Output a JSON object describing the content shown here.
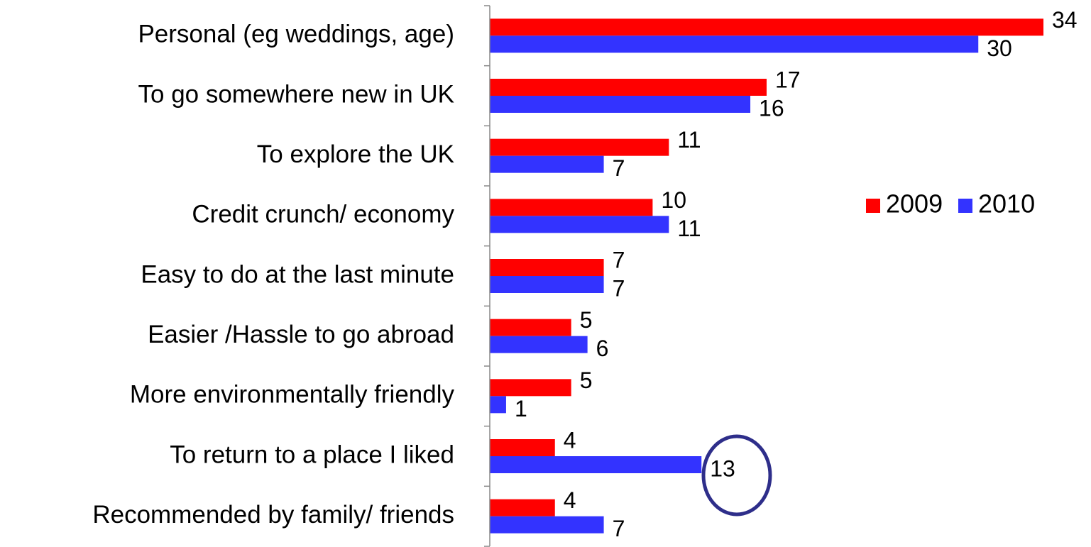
{
  "chart_data": {
    "type": "hbar",
    "categories": [
      "Personal (eg weddings, age)",
      "To go somewhere new in UK",
      "To explore the UK",
      "Credit crunch/ economy",
      "Easy to do at the last minute",
      "Easier /Hassle to go abroad",
      "More environmentally friendly",
      "To return to a place I liked",
      "Recommended by family/ friends"
    ],
    "series": [
      {
        "name": "2009",
        "color": "#ff0000",
        "values": [
          34,
          17,
          11,
          10,
          7,
          5,
          5,
          4,
          4
        ]
      },
      {
        "name": "2010",
        "color": "#3333ff",
        "values": [
          30,
          16,
          7,
          11,
          7,
          6,
          1,
          13,
          7
        ]
      }
    ],
    "xlim": [
      0,
      34
    ],
    "legend": "right"
  }
}
